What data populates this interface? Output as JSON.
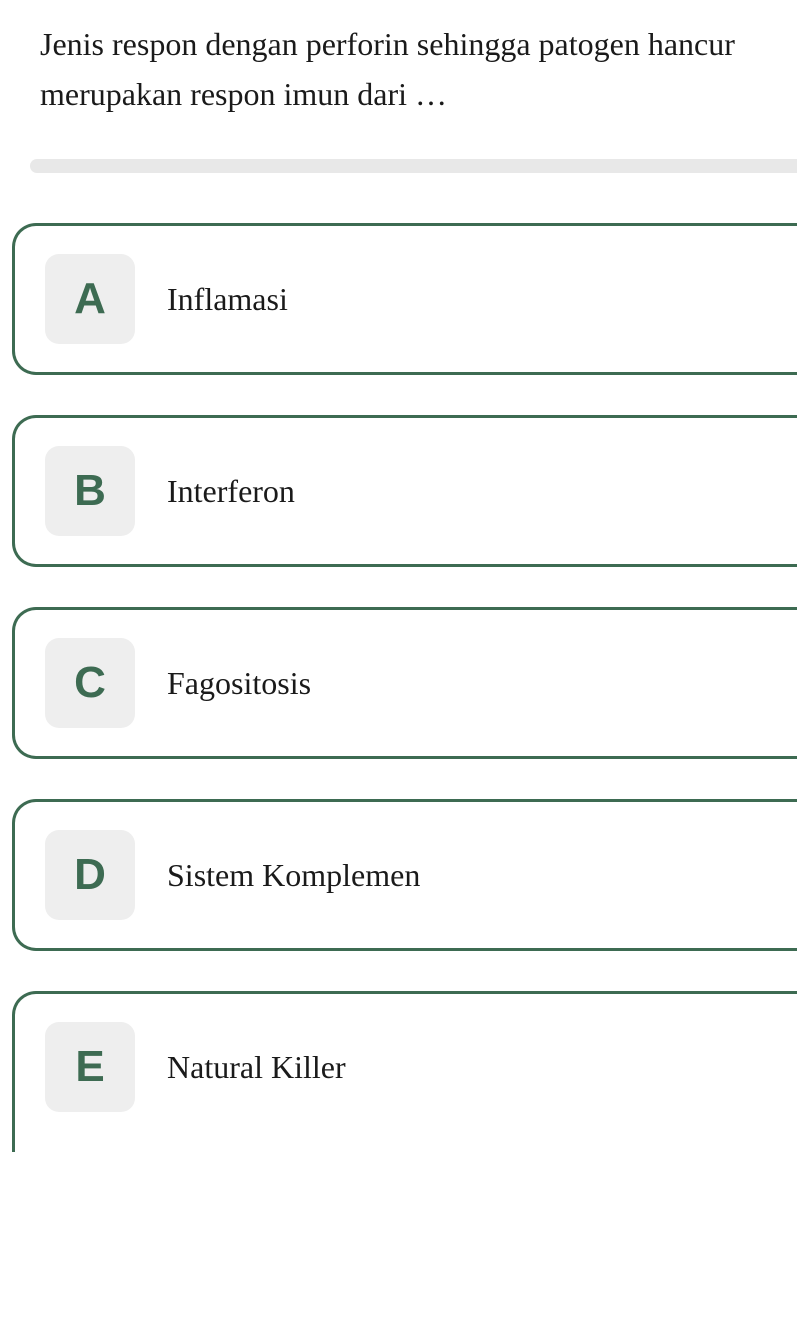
{
  "question": {
    "text": "Jenis respon dengan perforin sehingga patogen hancur merupakan respon imun dari …",
    "text_color": "#1a1a1a",
    "font_size": 32
  },
  "divider": {
    "background_color": "#e8e8e8"
  },
  "options": [
    {
      "letter": "A",
      "label": "Inflamasi"
    },
    {
      "letter": "B",
      "label": "Interferon"
    },
    {
      "letter": "C",
      "label": "Fagositosis"
    },
    {
      "letter": "D",
      "label": "Sistem Komplemen"
    },
    {
      "letter": "E",
      "label": "Natural Killer"
    }
  ],
  "styling": {
    "option_border_color": "#3d6b52",
    "option_letter_color": "#3d6b52",
    "option_letter_bg": "#eeeeee",
    "option_text_color": "#1a1a1a",
    "background_color": "#ffffff",
    "option_border_radius": 24,
    "letter_box_radius": 14,
    "option_font_size": 32,
    "letter_font_size": 44
  }
}
